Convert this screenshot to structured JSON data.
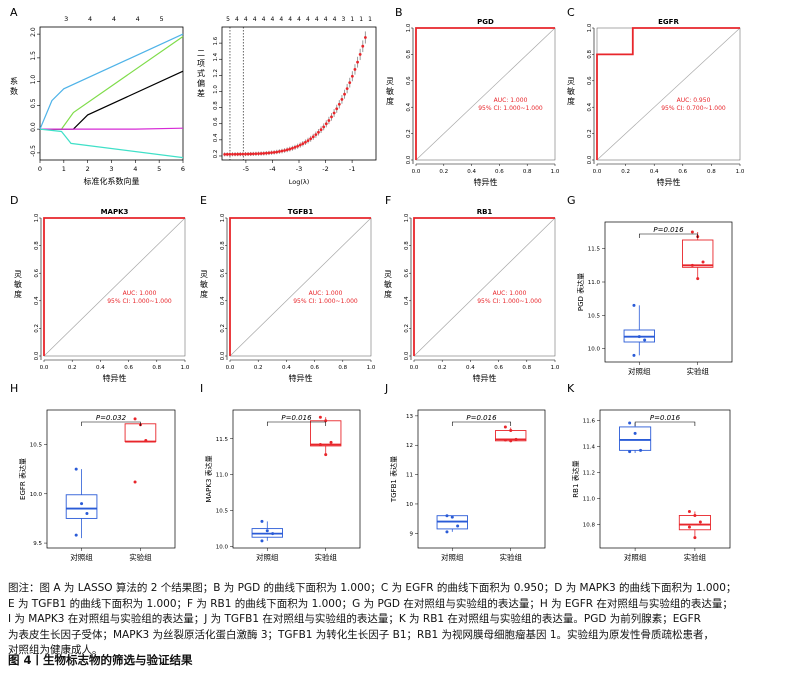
{
  "colors": {
    "red": "#e8262b",
    "blue": "#2a5bd7",
    "black": "#000000",
    "gray": "#8c8c8c",
    "pink": "#d62ad6",
    "lightblue": "#4fb3e8",
    "green": "#7fdc4a",
    "cyan": "#40e0c8"
  },
  "chart_data": [
    {
      "panel": "A",
      "type": "line",
      "xlabel": "标准化系数向量",
      "ylabel": "系数",
      "xticks": [
        "0",
        "1",
        "2",
        "3",
        "4",
        "5",
        "6"
      ],
      "yticks": [
        "-0.5",
        "0.0",
        "0.5",
        "1.0",
        "1.5",
        "2.0"
      ],
      "top_ticks": [
        {
          "x": 1.1,
          "label": "3"
        },
        {
          "x": 2.1,
          "label": "4"
        },
        {
          "x": 3.1,
          "label": "4"
        },
        {
          "x": 4.1,
          "label": "4"
        },
        {
          "x": 5.1,
          "label": "5"
        }
      ],
      "xlim": [
        0,
        6
      ],
      "ylim": [
        -0.65,
        2.15
      ],
      "series": [
        {
          "color": "#4fb3e8",
          "points": [
            [
              0,
              0
            ],
            [
              0.5,
              0.6
            ],
            [
              1,
              0.85
            ],
            [
              6,
              2.0
            ]
          ]
        },
        {
          "color": "#7fdc4a",
          "points": [
            [
              0,
              0
            ],
            [
              0.9,
              0
            ],
            [
              1.4,
              0.35
            ],
            [
              6,
              1.95
            ]
          ]
        },
        {
          "color": "#000000",
          "points": [
            [
              0,
              0
            ],
            [
              1.4,
              0
            ],
            [
              2.0,
              0.3
            ],
            [
              6,
              1.22
            ]
          ]
        },
        {
          "color": "#d62ad6",
          "points": [
            [
              0,
              0
            ],
            [
              4,
              0
            ],
            [
              6,
              0.02
            ]
          ]
        },
        {
          "color": "#40e0c8",
          "points": [
            [
              0,
              0
            ],
            [
              0.9,
              -0.05
            ],
            [
              1.3,
              -0.3
            ],
            [
              6,
              -0.6
            ]
          ]
        }
      ]
    },
    {
      "panel": "A2",
      "type": "scatter",
      "xlabel": "Log(λ)",
      "ylabel": "二项式偏差",
      "xticks": [
        "-5",
        "-4",
        "-3",
        "-2",
        "-1"
      ],
      "yticks": [
        "0.2",
        "0.4",
        "0.6",
        "0.8",
        "1.0",
        "1.2",
        "1.4",
        "1.6"
      ],
      "top_labels": [
        "5",
        "4",
        "4",
        "4",
        "4",
        "4",
        "4",
        "4",
        "4",
        "4",
        "4",
        "4",
        "4",
        "3",
        "1",
        "1",
        "1"
      ],
      "xlim": [
        -5.9,
        -0.1
      ],
      "ylim": [
        0.15,
        1.8
      ],
      "vlines": [
        -5.6,
        -5.1
      ],
      "curve": {
        "x0": -5.8,
        "x1": -0.5,
        "n": 55,
        "base": 0.22,
        "amp": 1.43,
        "k": 0.75
      }
    },
    {
      "panel": "B",
      "type": "line",
      "title": "PGD",
      "xlabel": "特异性",
      "ylabel": "灵敏度",
      "auc": "AUC: 1.000",
      "ci": "95% CI: 1.000~1.000",
      "roc": [
        [
          0,
          0
        ],
        [
          0,
          1
        ],
        [
          1,
          1
        ]
      ]
    },
    {
      "panel": "C",
      "type": "line",
      "title": "EGFR",
      "xlabel": "特异性",
      "ylabel": "灵敏度",
      "auc": "AUC: 0.950",
      "ci": "95% CI: 0.700~1.000",
      "roc": [
        [
          0,
          0
        ],
        [
          0,
          0.8
        ],
        [
          0.25,
          0.8
        ],
        [
          0.25,
          1
        ],
        [
          1,
          1
        ]
      ]
    },
    {
      "panel": "D",
      "type": "line",
      "title": "MAPK3",
      "xlabel": "特异性",
      "ylabel": "灵敏度",
      "auc": "AUC: 1.000",
      "ci": "95% CI: 1.000~1.000",
      "roc": [
        [
          0,
          0
        ],
        [
          0,
          1
        ],
        [
          1,
          1
        ]
      ]
    },
    {
      "panel": "E",
      "type": "line",
      "title": "TGFB1",
      "xlabel": "特异性",
      "ylabel": "灵敏度",
      "auc": "AUC: 1.000",
      "ci": "95% CI: 1.000~1.000",
      "roc": [
        [
          0,
          0
        ],
        [
          0,
          1
        ],
        [
          1,
          1
        ]
      ]
    },
    {
      "panel": "F",
      "type": "line",
      "title": "RB1",
      "xlabel": "特异性",
      "ylabel": "灵敏度",
      "auc": "AUC: 1.000",
      "ci": "95% CI: 1.000~1.000",
      "roc": [
        [
          0,
          0
        ],
        [
          0,
          1
        ],
        [
          1,
          1
        ]
      ]
    },
    {
      "panel": "G",
      "type": "box",
      "ylabel": "PGD 表达量",
      "pval": "P=0.016",
      "categories": [
        "对照组",
        "实验组"
      ],
      "yticks": [
        "10.0",
        "10.5",
        "11.0",
        "11.5"
      ],
      "ylim": [
        9.8,
        11.9
      ],
      "boxes": [
        {
          "q1": 10.1,
          "med": 10.18,
          "q3": 10.28,
          "lo": 9.9,
          "hi": 10.65,
          "pts": [
            10.65,
            10.18,
            10.13,
            9.9
          ]
        },
        {
          "q1": 11.22,
          "med": 11.25,
          "q3": 11.63,
          "lo": 11.05,
          "hi": 11.75,
          "pts": [
            11.75,
            11.68,
            11.3,
            11.25,
            11.05
          ]
        }
      ]
    },
    {
      "panel": "H",
      "type": "box",
      "ylabel": "EGFR 表达量",
      "pval": "P=0.032",
      "categories": [
        "对照组",
        "实验组"
      ],
      "yticks": [
        "9.5",
        "10.0",
        "10.5"
      ],
      "ylim": [
        9.45,
        10.85
      ],
      "boxes": [
        {
          "q1": 9.75,
          "med": 9.85,
          "q3": 9.99,
          "lo": 9.55,
          "hi": 10.25,
          "pts": [
            10.25,
            9.9,
            9.8,
            9.58
          ]
        },
        {
          "q1": 10.53,
          "med": 10.53,
          "q3": 10.71,
          "lo": 10.53,
          "hi": 10.71,
          "pts": [
            10.76,
            10.7,
            10.54,
            10.12
          ]
        }
      ]
    },
    {
      "panel": "I",
      "type": "box",
      "ylabel": "MAPK3 表达量",
      "pval": "P=0.016",
      "categories": [
        "对照组",
        "实验组"
      ],
      "yticks": [
        "10.0",
        "10.5",
        "11.0",
        "11.5"
      ],
      "ylim": [
        9.98,
        11.9
      ],
      "boxes": [
        {
          "q1": 10.13,
          "med": 10.18,
          "q3": 10.25,
          "lo": 10.08,
          "hi": 10.35,
          "pts": [
            10.35,
            10.22,
            10.18,
            10.08
          ]
        },
        {
          "q1": 11.4,
          "med": 11.42,
          "q3": 11.75,
          "lo": 11.28,
          "hi": 11.8,
          "pts": [
            11.8,
            11.75,
            11.45,
            11.42,
            11.28
          ]
        }
      ]
    },
    {
      "panel": "J",
      "type": "box",
      "ylabel": "TGFB1 表达量",
      "pval": "P=0.016",
      "categories": [
        "对照组",
        "实验组"
      ],
      "yticks": [
        "9",
        "10",
        "11",
        "12",
        "13"
      ],
      "ylim": [
        8.5,
        13.2
      ],
      "boxes": [
        {
          "q1": 9.15,
          "med": 9.4,
          "q3": 9.6,
          "lo": 9.05,
          "hi": 9.6,
          "pts": [
            9.6,
            9.55,
            9.25,
            9.05
          ]
        },
        {
          "q1": 12.15,
          "med": 12.2,
          "q3": 12.5,
          "lo": 12.15,
          "hi": 12.6,
          "pts": [
            12.62,
            12.5,
            12.2,
            12.18,
            12.15
          ]
        }
      ]
    },
    {
      "panel": "K",
      "type": "box",
      "ylabel": "RB1 表达量",
      "pval": "P=0.016",
      "categories": [
        "对照组",
        "实验组"
      ],
      "yticks": [
        "10.8",
        "11.0",
        "11.2",
        "11.4",
        "11.6"
      ],
      "ylim": [
        10.62,
        11.68
      ],
      "boxes": [
        {
          "q1": 11.37,
          "med": 11.45,
          "q3": 11.55,
          "lo": 11.35,
          "hi": 11.58,
          "pts": [
            11.58,
            11.5,
            11.37,
            11.36
          ]
        },
        {
          "q1": 10.76,
          "med": 10.8,
          "q3": 10.87,
          "lo": 10.7,
          "hi": 10.9,
          "pts": [
            10.9,
            10.87,
            10.82,
            10.78,
            10.7
          ]
        }
      ]
    }
  ],
  "panel_letters": [
    "A",
    "B",
    "C",
    "D",
    "E",
    "F",
    "G",
    "H",
    "I",
    "J",
    "K"
  ],
  "caption": [
    "图注：图 A 为 LASSO 算法的 2 个结果图；B 为 PGD 的曲线下面积为 1.000；C 为 EGFR 的曲线下面积为 0.950；D 为 MAPK3 的曲线下面积为 1.000；",
    "E 为 TGFB1 的曲线下面积为 1.000；F 为 RB1 的曲线下面积为 1.000；G 为 PGD 在对照组与实验组的表达量；H 为 EGFR 在对照组与实验组的表达量；",
    "I 为 MAPK3 在对照组与实验组的表达量；J 为 TGFB1 在对照组与实验组的表达量；K 为 RB1 在对照组与实验组的表达量。PGD 为前列腺素；EGFR",
    "为表皮生长因子受体；MAPK3 为丝裂原活化蛋白激酶 3；TGFB1 为转化生长因子 B1；RB1 为视网膜母细胞瘤基因 1。实验组为原发性骨质疏松患者，",
    "对照组为健康成人。"
  ],
  "figure_title": "图 4丨生物标志物的筛选与验证结果"
}
